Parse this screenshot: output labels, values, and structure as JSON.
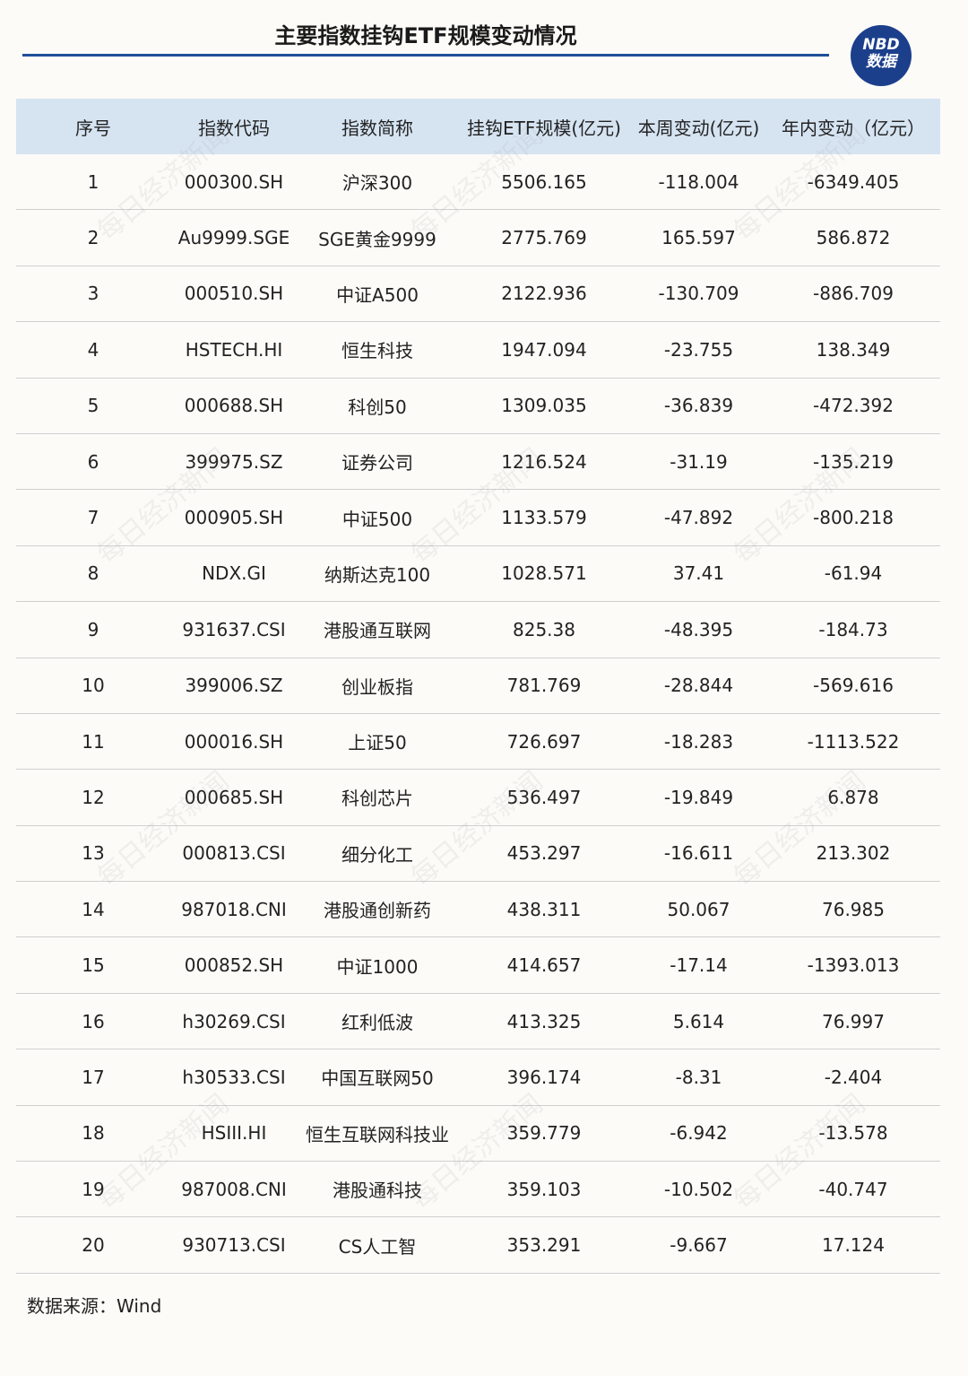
{
  "header": {
    "title": "主要指数挂钩ETF规模变动情况",
    "logo": {
      "line1": "NBD",
      "line2": "数据"
    }
  },
  "watermark": "每日经济新闻",
  "table": {
    "columns": [
      "序号",
      "指数代码",
      "指数简称",
      "挂钩ETF规模(亿元)",
      "本周变动(亿元)",
      "年内变动（亿元）"
    ],
    "rows": [
      [
        "1",
        "000300.SH",
        "沪深300",
        "5506.165",
        "-118.004",
        "-6349.405"
      ],
      [
        "2",
        "Au9999.SGE",
        "SGE黄金9999",
        "2775.769",
        "165.597",
        "586.872"
      ],
      [
        "3",
        "000510.SH",
        "中证A500",
        "2122.936",
        "-130.709",
        "-886.709"
      ],
      [
        "4",
        "HSTECH.HI",
        "恒生科技",
        "1947.094",
        "-23.755",
        "138.349"
      ],
      [
        "5",
        "000688.SH",
        "科创50",
        "1309.035",
        "-36.839",
        "-472.392"
      ],
      [
        "6",
        "399975.SZ",
        "证券公司",
        "1216.524",
        "-31.19",
        "-135.219"
      ],
      [
        "7",
        "000905.SH",
        "中证500",
        "1133.579",
        "-47.892",
        "-800.218"
      ],
      [
        "8",
        "NDX.GI",
        "纳斯达克100",
        "1028.571",
        "37.41",
        "-61.94"
      ],
      [
        "9",
        "931637.CSI",
        "港股通互联网",
        "825.38",
        "-48.395",
        "-184.73"
      ],
      [
        "10",
        "399006.SZ",
        "创业板指",
        "781.769",
        "-28.844",
        "-569.616"
      ],
      [
        "11",
        "000016.SH",
        "上证50",
        "726.697",
        "-18.283",
        "-1113.522"
      ],
      [
        "12",
        "000685.SH",
        "科创芯片",
        "536.497",
        "-19.849",
        "6.878"
      ],
      [
        "13",
        "000813.CSI",
        "细分化工",
        "453.297",
        "-16.611",
        "213.302"
      ],
      [
        "14",
        "987018.CNI",
        "港股通创新药",
        "438.311",
        "50.067",
        "76.985"
      ],
      [
        "15",
        "000852.SH",
        "中证1000",
        "414.657",
        "-17.14",
        "-1393.013"
      ],
      [
        "16",
        "h30269.CSI",
        "红利低波",
        "413.325",
        "5.614",
        "76.997"
      ],
      [
        "17",
        "h30533.CSI",
        "中国互联网50",
        "396.174",
        "-8.31",
        "-2.404"
      ],
      [
        "18",
        "HSIII.HI",
        "恒生互联网科技业",
        "359.779",
        "-6.942",
        "-13.578"
      ],
      [
        "19",
        "987008.CNI",
        "港股通科技",
        "359.103",
        "-10.502",
        "-40.747"
      ],
      [
        "20",
        "930713.CSI",
        "CS人工智",
        "353.291",
        "-9.667",
        "17.124"
      ]
    ]
  },
  "source": "数据来源：Wind"
}
